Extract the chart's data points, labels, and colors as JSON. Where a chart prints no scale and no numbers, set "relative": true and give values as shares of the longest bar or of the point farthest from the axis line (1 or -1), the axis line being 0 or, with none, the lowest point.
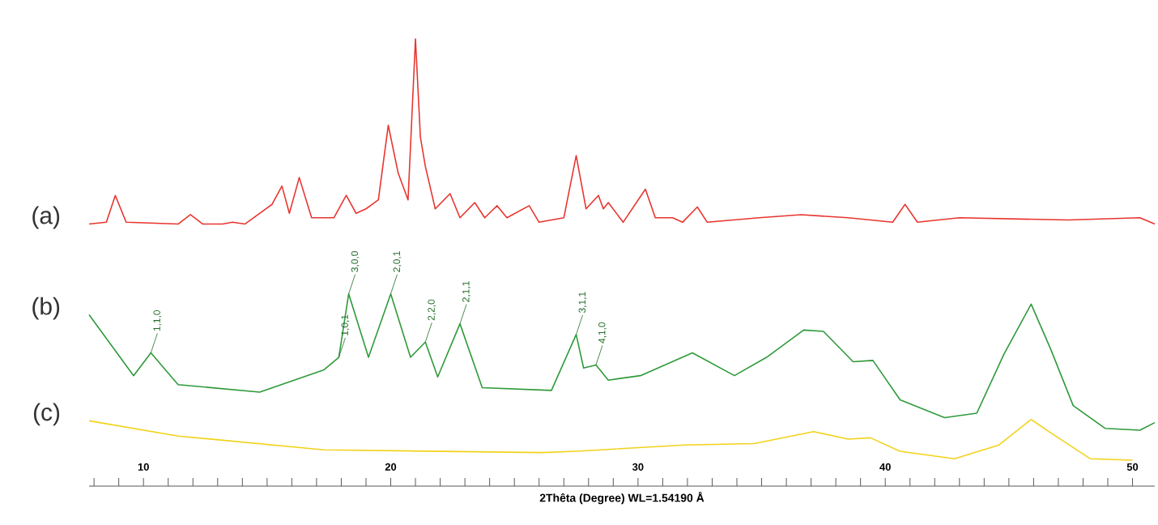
{
  "chart_data": {
    "type": "line",
    "relative": true,
    "xlabel": "2Thêta (Degree)  WL=1.54190 Å",
    "xlim": [
      7.8,
      50.9
    ],
    "xticks": [
      {
        "value": 8,
        "label": null
      },
      {
        "value": 9,
        "label": null
      },
      10,
      {
        "value": 11,
        "label": null
      },
      {
        "value": 12,
        "label": null
      },
      {
        "value": 13,
        "label": null
      },
      {
        "value": 14,
        "label": null
      },
      {
        "value": 15,
        "label": null
      },
      {
        "value": 16,
        "label": null
      },
      {
        "value": 17,
        "label": null
      },
      {
        "value": 18,
        "label": null
      },
      {
        "value": 19,
        "label": null
      },
      20,
      {
        "value": 21,
        "label": null
      },
      {
        "value": 22,
        "label": null
      },
      {
        "value": 23,
        "label": null
      },
      {
        "value": 24,
        "label": null
      },
      {
        "value": 25,
        "label": null
      },
      {
        "value": 26,
        "label": null
      },
      {
        "value": 27,
        "label": null
      },
      {
        "value": 28,
        "label": null
      },
      {
        "value": 29,
        "label": null
      },
      30,
      {
        "value": 31,
        "label": null
      },
      {
        "value": 32,
        "label": null
      },
      {
        "value": 33,
        "label": null
      },
      {
        "value": 34,
        "label": null
      },
      {
        "value": 35,
        "label": null
      },
      {
        "value": 36,
        "label": null
      },
      {
        "value": 37,
        "label": null
      },
      {
        "value": 38,
        "label": null
      },
      {
        "value": 39,
        "label": null
      },
      40,
      {
        "value": 41,
        "label": null
      },
      {
        "value": 42,
        "label": null
      },
      {
        "value": 43,
        "label": null
      },
      {
        "value": 44,
        "label": null
      },
      {
        "value": 45,
        "label": null
      },
      {
        "value": 46,
        "label": null
      },
      {
        "value": 47,
        "label": null
      },
      {
        "value": 48,
        "label": null
      },
      {
        "value": 49,
        "label": null
      },
      50
    ],
    "tick_labels": "x",
    "grid": false,
    "legend": false,
    "marker": "none",
    "line_style": "solid",
    "series": [
      {
        "name": "(a)",
        "color": "#e8352f",
        "x": [
          7.8,
          8.5,
          8.86,
          9.3,
          11.4,
          11.9,
          12.4,
          13.2,
          13.6,
          14.1,
          15.2,
          15.6,
          15.9,
          16.3,
          16.8,
          17.7,
          18.2,
          18.6,
          19.0,
          19.5,
          19.9,
          20.3,
          20.7,
          21.0,
          21.2,
          21.4,
          21.8,
          22.4,
          22.8,
          23.4,
          23.8,
          24.3,
          24.7,
          25.6,
          26.0,
          27.0,
          27.5,
          27.9,
          28.4,
          28.6,
          28.8,
          29.4,
          30.3,
          30.7,
          31.4,
          31.8,
          32.4,
          32.8,
          34.9,
          36.6,
          38.5,
          40.3,
          40.8,
          41.3,
          43.0,
          47.4,
          50.3,
          50.9
        ],
        "values": [
          0.586,
          0.59,
          0.65,
          0.59,
          0.586,
          0.607,
          0.586,
          0.586,
          0.59,
          0.586,
          0.63,
          0.671,
          0.61,
          0.69,
          0.6,
          0.6,
          0.65,
          0.61,
          0.62,
          0.64,
          0.807,
          0.7,
          0.64,
          1,
          0.78,
          0.715,
          0.62,
          0.654,
          0.6,
          0.634,
          0.6,
          0.627,
          0.6,
          0.627,
          0.59,
          0.6,
          0.739,
          0.62,
          0.65,
          0.62,
          0.634,
          0.59,
          0.664,
          0.6,
          0.6,
          0.59,
          0.624,
          0.59,
          0.6,
          0.607,
          0.6,
          0.59,
          0.63,
          0.59,
          0.6,
          0.595,
          0.6,
          0.586
        ]
      },
      {
        "name": "(b)",
        "color": "#2e9a3a",
        "x": [
          7.8,
          9.6,
          10.3,
          11.4,
          14.7,
          17.3,
          17.9,
          18.3,
          19.1,
          20.0,
          20.8,
          21.4,
          21.9,
          22.8,
          23.7,
          26.5,
          27.5,
          27.8,
          28.3,
          28.8,
          30.1,
          32.2,
          33.9,
          35.2,
          36.7,
          37.5,
          38.7,
          39.5,
          40.6,
          42.4,
          43.7,
          44.8,
          45.9,
          46.7,
          47.6,
          48.9,
          50.3,
          50.9
        ],
        "values": [
          0.383,
          0.247,
          0.298,
          0.227,
          0.21,
          0.26,
          0.288,
          0.43,
          0.288,
          0.43,
          0.288,
          0.322,
          0.244,
          0.363,
          0.22,
          0.214,
          0.339,
          0.264,
          0.271,
          0.237,
          0.247,
          0.298,
          0.247,
          0.288,
          0.349,
          0.346,
          0.278,
          0.281,
          0.193,
          0.153,
          0.163,
          0.295,
          0.407,
          0.305,
          0.18,
          0.129,
          0.125,
          0.142
        ]
      },
      {
        "name": "(c)",
        "color": "#f2d21a",
        "x": [
          7.8,
          11.4,
          17.3,
          26.1,
          27.5,
          31.9,
          34.7,
          37.1,
          38.5,
          39.4,
          40.6,
          42.8,
          44.6,
          45.9,
          46.7,
          48.3,
          50.0
        ],
        "values": [
          0.146,
          0.112,
          0.081,
          0.075,
          0.078,
          0.092,
          0.095,
          0.122,
          0.105,
          0.108,
          0.078,
          0.061,
          0.092,
          0.149,
          0.119,
          0.061,
          0.058
        ]
      }
    ],
    "annotations": [
      {
        "text": "1,1,0",
        "x": 10.3,
        "y": 0.298
      },
      {
        "text": "1,0,1",
        "x": 17.9,
        "y": 0.288
      },
      {
        "text": "3,0,0",
        "x": 18.3,
        "y": 0.43
      },
      {
        "text": "2,0,1",
        "x": 20.0,
        "y": 0.43
      },
      {
        "text": "2,2,0",
        "x": 21.4,
        "y": 0.322
      },
      {
        "text": "2,1,1",
        "x": 22.8,
        "y": 0.363
      },
      {
        "text": "3,1,1",
        "x": 27.5,
        "y": 0.339
      },
      {
        "text": "4,1,0",
        "x": 28.3,
        "y": 0.271
      }
    ]
  }
}
